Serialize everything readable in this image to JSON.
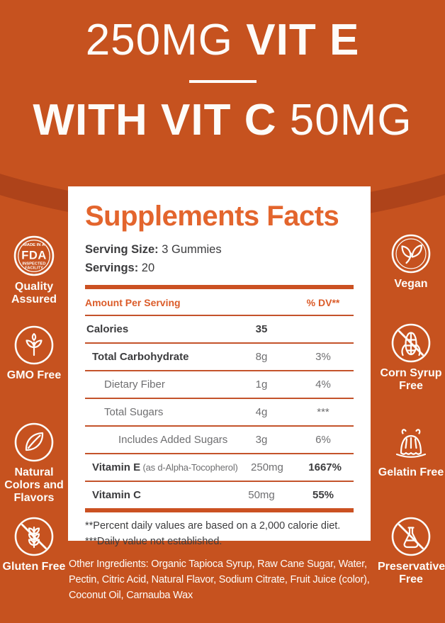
{
  "colors": {
    "background": "#C6521F",
    "background_dark_arc": "#AE431A",
    "accent_orange": "#E3652D",
    "rule_orange": "#CB5122",
    "text_dark": "#3C3C3E",
    "text_gray": "#6F6F71",
    "white": "#FFFFFF"
  },
  "title": {
    "line1_regular": "250MG",
    "line1_bold": "VIT E",
    "line2_bold": "WITH VIT C",
    "line2_regular": "50MG"
  },
  "panel": {
    "heading": "Supplements Facts",
    "serving_size_label": "Serving Size:",
    "serving_size_value": "3 Gummies",
    "servings_label": "Servings:",
    "servings_value": "20",
    "header": {
      "amount": "Amount Per Serving",
      "dv": "% DV**"
    },
    "rows": [
      {
        "label": "Calories",
        "detail": "",
        "amount": "35",
        "dv": "",
        "indent": 0,
        "label_bold": true,
        "amount_bold": true,
        "dv_bold": false
      },
      {
        "label": "Total Carbohydrate",
        "detail": "",
        "amount": "8g",
        "dv": "3%",
        "indent": 1,
        "label_bold": true,
        "amount_bold": false,
        "dv_bold": false
      },
      {
        "label": "Dietary Fiber",
        "detail": "",
        "amount": "1g",
        "dv": "4%",
        "indent": 2,
        "label_bold": false,
        "amount_bold": false,
        "dv_bold": false
      },
      {
        "label": "Total Sugars",
        "detail": "",
        "amount": "4g",
        "dv": "***",
        "indent": 2,
        "label_bold": false,
        "amount_bold": false,
        "dv_bold": false
      },
      {
        "label": "Includes Added Sugars",
        "detail": "",
        "amount": "3g",
        "dv": "6%",
        "indent": 3,
        "label_bold": false,
        "amount_bold": false,
        "dv_bold": false
      },
      {
        "label": "Vitamin E",
        "detail": " (as d-Alpha-Tocopherol)",
        "amount": "250mg",
        "dv": "1667%",
        "indent": 1,
        "label_bold": true,
        "amount_bold": false,
        "dv_bold": true
      },
      {
        "label": "Vitamin C",
        "detail": "",
        "amount": "50mg",
        "dv": "55%",
        "indent": 1,
        "label_bold": true,
        "amount_bold": false,
        "dv_bold": true
      }
    ],
    "footnotes": [
      "**Percent daily values are based on a 2,000 calorie diet.",
      "***Daily value not established."
    ]
  },
  "other_ingredients": "Other Ingredients: Organic Tapioca Syrup, Raw Cane Sugar, Water, Pectin, Citric Acid, Natural Flavor, Sodium Citrate, Fruit Juice (color), Coconut Oil, Carnauba Wax",
  "fda_seal": {
    "top": "MADE IN A",
    "center": "FDA",
    "bottom1": "INSPECTED",
    "bottom2": "FACILITY"
  },
  "badges_left": [
    {
      "icon": "fda-seal-icon",
      "label": "Quality Assured"
    },
    {
      "icon": "gmo-free-icon",
      "label": "GMO Free"
    },
    {
      "icon": "natural-leaf-icon",
      "label": "Natural Colors and Flavors"
    },
    {
      "icon": "gluten-free-icon",
      "label": "Gluten Free"
    }
  ],
  "badges_right": [
    {
      "icon": "vegan-leaves-icon",
      "label": "Vegan"
    },
    {
      "icon": "corn-syrup-free-icon",
      "label": "Corn Syrup Free"
    },
    {
      "icon": "gelatin-free-icon",
      "label": "Gelatin Free"
    },
    {
      "icon": "preservative-free-icon",
      "label": "Preservative Free"
    }
  ]
}
